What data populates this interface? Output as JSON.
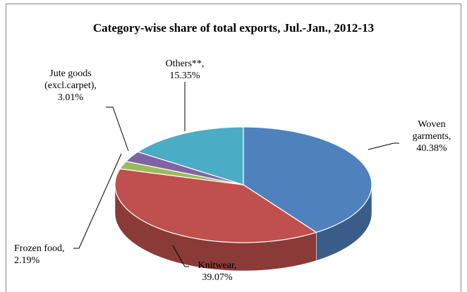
{
  "chart_data": {
    "type": "pie3d",
    "title": "Category-wise share of total exports,  Jul.-Jan., 2012-13",
    "categories": [
      "Woven garments,",
      "Knitwear,",
      "Frozen food,",
      "Jute goods (excl.carpet),",
      "Others**,"
    ],
    "values": [
      40.38,
      39.07,
      2.19,
      3.01,
      15.35
    ],
    "value_labels": [
      "40.38%",
      "39.07%",
      "2.19%",
      "3.01%",
      "15.35%"
    ],
    "colors": [
      "#4f81bd",
      "#c0504d",
      "#9bbb59",
      "#8064a2",
      "#4bacc6"
    ]
  }
}
